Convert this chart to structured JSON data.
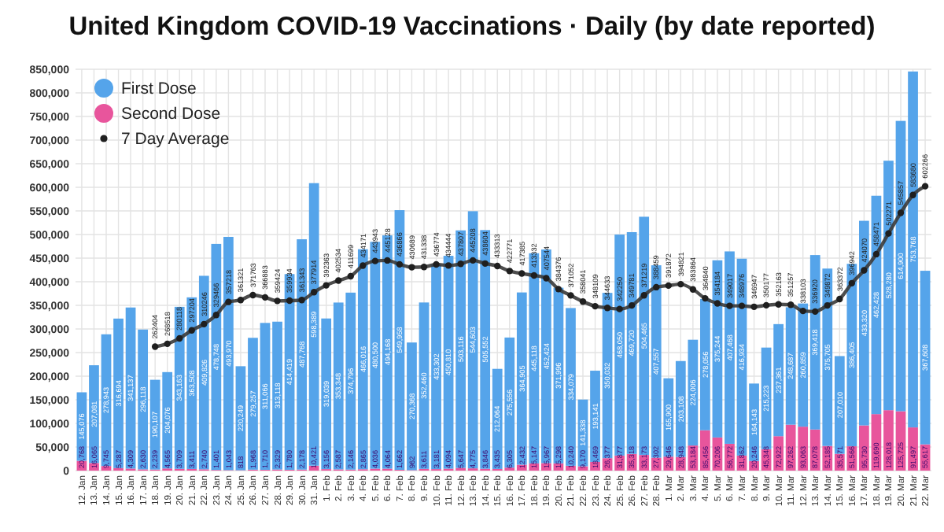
{
  "chart_data": {
    "type": "bar",
    "title": "United Kingdom COVID-19 Vaccinations · Daily (by date reported)",
    "categories": [
      "12. Jan",
      "13. Jan",
      "14. Jan",
      "15. Jan",
      "16. Jan",
      "17. Jan",
      "18. Jan",
      "19. Jan",
      "20. Jan",
      "21. Jan",
      "22. Jan",
      "23. Jan",
      "24. Jan",
      "25. Jan",
      "26. Jan",
      "27. Jan",
      "28. Jan",
      "29. Jan",
      "30. Jan",
      "31. Jan",
      "1. Feb",
      "2. Feb",
      "3. Feb",
      "4. Feb",
      "5. Feb",
      "6. Feb",
      "7. Feb",
      "8. Feb",
      "9. Feb",
      "10. Feb",
      "11. Feb",
      "12. Feb",
      "13. Feb",
      "14. Feb",
      "15. Feb",
      "16. Feb",
      "17. Feb",
      "18. Feb",
      "19. Feb",
      "20. Feb",
      "21. Feb",
      "22. Feb",
      "23. Feb",
      "24. Feb",
      "25. Feb",
      "26. Feb",
      "27. Feb",
      "28. Feb",
      "1. Mar",
      "2. Mar",
      "3. Mar",
      "4. Mar",
      "5. Mar",
      "6. Mar",
      "7. Mar",
      "8. Mar",
      "9. Mar",
      "10. Mar",
      "11. Mar",
      "12. Mar",
      "13. Mar",
      "14. Mar",
      "15. Mar",
      "16. Mar",
      "17. Mar",
      "18. Mar",
      "19. Mar",
      "20. Mar",
      "21. Mar",
      "22. Mar"
    ],
    "stacked": true,
    "series": [
      {
        "name": "Second Dose",
        "color": "#e8559c",
        "values": [
          20768,
          16065,
          9745,
          5287,
          4309,
          2630,
          2239,
          4565,
          3709,
          3411,
          2740,
          1401,
          1043,
          818,
          1968,
          1710,
          2329,
          1780,
          2178,
          10421,
          3156,
          2587,
          2146,
          2865,
          4036,
          4064,
          1662,
          962,
          3611,
          3181,
          4094,
          5647,
          4775,
          3846,
          3435,
          6305,
          12432,
          15147,
          15967,
          15298,
          10240,
          9170,
          18469,
          26377,
          31877,
          35318,
          33173,
          27302,
          29646,
          28948,
          53184,
          85456,
          70206,
          56772,
          31862,
          20246,
          45348,
          72922,
          97262,
          93063,
          87078,
          52185,
          35571,
          51566,
          95730,
          119690,
          128018,
          125725,
          91497,
          55617
        ],
        "value_labels": [
          "20,768",
          "16,065",
          "9,745",
          "5,287",
          "4,309",
          "2,630",
          "2,239",
          "4,565",
          "3,709",
          "3,411",
          "2,740",
          "1,401",
          "1,043",
          "818",
          "1,968",
          "1,710",
          "2,329",
          "1,780",
          "2,178",
          "10,421",
          "3,156",
          "2,587",
          "2,146",
          "2,865",
          "4,036",
          "4,064",
          "1,662",
          "962",
          "3,611",
          "3,181",
          "4,094",
          "5,647",
          "4,775",
          "3,846",
          "3,435",
          "6,305",
          "12,432",
          "15,147",
          "15,967",
          "15,298",
          "10,240",
          "9,170",
          "18,469",
          "26,377",
          "31,877",
          "35,318",
          "33,173",
          "27,302",
          "29,646",
          "28,948",
          "53,184",
          "85,456",
          "70,206",
          "56,772",
          "31,862",
          "20,246",
          "45,348",
          "72,922",
          "97,262",
          "93,063",
          "87,078",
          "52,185",
          "35,571",
          "51,566",
          "95,730",
          "119,690",
          "128,018",
          "125,725",
          "91,497",
          "55,617"
        ]
      },
      {
        "name": "First Dose",
        "color": "#55a4ea",
        "values": [
          145076,
          207081,
          278943,
          316694,
          341137,
          296118,
          190107,
          204076,
          343163,
          363508,
          409826,
          478748,
          493970,
          220249,
          279257,
          311066,
          313118,
          414419,
          487768,
          598389,
          319039,
          353348,
          374796,
          466016,
          480500,
          494168,
          549958,
          270368,
          352460,
          433302,
          450810,
          503116,
          544603,
          505552,
          212064,
          275556,
          364905,
          445118,
          452424,
          371996,
          334079,
          141338,
          193141,
          350032,
          468050,
          469720,
          504465,
          407557,
          165900,
          203108,
          224006,
          278056,
          375244,
          407468,
          416934,
          164143,
          215223,
          237361,
          248687,
          260859,
          369418,
          375705,
          207010,
          386405,
          433320,
          462428,
          528280,
          614900,
          753768,
          367608
        ],
        "value_labels": [
          "145,076",
          "207,081",
          "278,943",
          "316,694",
          "341,137",
          "296,118",
          "190,107",
          "204,076",
          "343,163",
          "363,508",
          "409,826",
          "478,748",
          "493,970",
          "220,249",
          "279,257",
          "311,066",
          "313,118",
          "414,419",
          "487,768",
          "598,389",
          "319,039",
          "353,348",
          "374,796",
          "466,016",
          "480,500",
          "494,168",
          "549,958",
          "270,368",
          "352,460",
          "433,302",
          "450,810",
          "503,116",
          "544,603",
          "505,552",
          "212,064",
          "275,556",
          "364,905",
          "445,118",
          "452,424",
          "371,996",
          "334,079",
          "141,338",
          "193,141",
          "350,032",
          "468,050",
          "469,720",
          "504,465",
          "407,557",
          "165,900",
          "203,108",
          "224,006",
          "278,056",
          "375,244",
          "407,468",
          "416,934",
          "164,143",
          "215,223",
          "237,361",
          "248,687",
          "260,859",
          "369,418",
          "375,705",
          "207,010",
          "386,405",
          "433,320",
          "462,428",
          "528,280",
          "614,900",
          "753,768",
          "367,608"
        ]
      },
      {
        "name": "7 Day Average",
        "type": "line",
        "color": "#3a3a3a",
        "marker": "circle",
        "values": [
          null,
          null,
          null,
          null,
          null,
          null,
          262404,
          268518,
          280118,
          297204,
          310246,
          329466,
          357218,
          361321,
          371763,
          366883,
          359424,
          359934,
          361343,
          377914,
          392363,
          402534,
          411699,
          434171,
          443943,
          445128,
          436866,
          430689,
          431338,
          436774,
          434444,
          437807,
          445208,
          438604,
          433313,
          422771,
          417385,
          413332,
          407544,
          384376,
          371052,
          358041,
          348109,
          344633,
          342250,
          349781,
          371219,
          388459,
          391872,
          394821,
          383864,
          364840,
          354184,
          349017,
          348976,
          346947,
          350177,
          352163,
          351257,
          338103,
          336920,
          349872,
          363372,
          396942,
          424070,
          458471,
          502271,
          545857,
          583680,
          602266
        ],
        "value_labels": [
          null,
          null,
          null,
          null,
          null,
          null,
          "262404",
          "268518",
          "280118",
          "297204",
          "310246",
          "329466",
          "357218",
          "361321",
          "371763",
          "366883",
          "359424",
          "359934",
          "361343",
          "377914",
          "392363",
          "402534",
          "411699",
          "434171",
          "443943",
          "445128",
          "436866",
          "430689",
          "431338",
          "436774",
          "434444",
          "437807",
          "445208",
          "438604",
          "433313",
          "422771",
          "417385",
          "413332",
          "407544",
          "384376",
          "371052",
          "358041",
          "348109",
          "344633",
          "342250",
          "349781",
          "371219",
          "388459",
          "391872",
          "394821",
          "383864",
          "364840",
          "354184",
          "349017",
          "348976",
          "346947",
          "350177",
          "352163",
          "351257",
          "338103",
          "336920",
          "349872",
          "363372",
          "396942",
          "424070",
          "458471",
          "502271",
          "545857",
          "583680",
          "602266"
        ]
      }
    ],
    "ylim": [
      0,
      850000
    ],
    "yticks": [
      {
        "value": 0,
        "label": "0"
      },
      {
        "value": 50000,
        "label": "50,000"
      },
      {
        "value": 100000,
        "label": "100,000"
      },
      {
        "value": 150000,
        "label": "150,000"
      },
      {
        "value": 200000,
        "label": "200,000"
      },
      {
        "value": 250000,
        "label": "250,000"
      },
      {
        "value": 300000,
        "label": "300,000"
      },
      {
        "value": 350000,
        "label": "350,000"
      },
      {
        "value": 400000,
        "label": "400,000"
      },
      {
        "value": 450000,
        "label": "450,000"
      },
      {
        "value": 500000,
        "label": "500,000"
      },
      {
        "value": 550000,
        "label": "550,000"
      },
      {
        "value": 600000,
        "label": "600,000"
      },
      {
        "value": 650000,
        "label": "650,000"
      },
      {
        "value": 700000,
        "label": "700,000"
      },
      {
        "value": 750000,
        "label": "750,000"
      },
      {
        "value": 800000,
        "label": "800,000"
      },
      {
        "value": 850000,
        "label": "850,000"
      }
    ],
    "grid": true,
    "legend": "top left"
  }
}
